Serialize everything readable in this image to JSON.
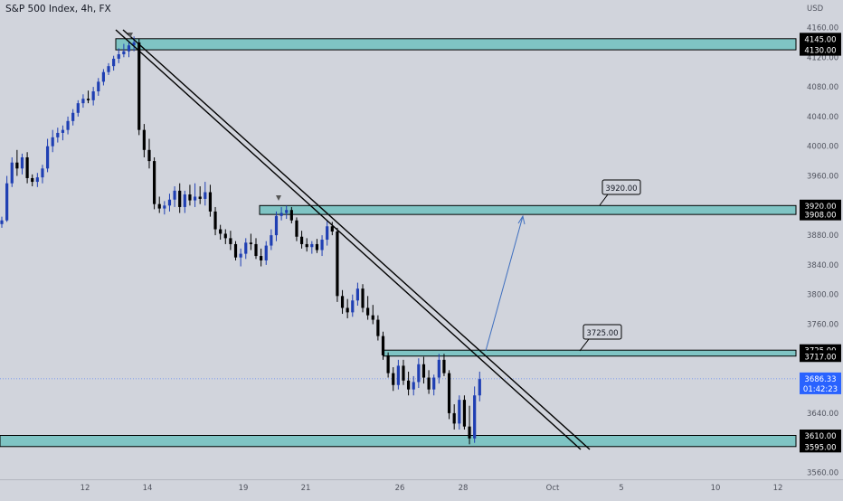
{
  "header": {
    "symbol_title": "S&P 500 Index, 4h, FX"
  },
  "chart_data": {
    "type": "candlestick",
    "currency_label": "USD",
    "ylim": [
      3545,
      4170
    ],
    "y_ticks": [
      4160,
      4120,
      4080,
      4040,
      4000,
      3960,
      3880,
      3840,
      3800,
      3760,
      3680,
      3640,
      3560
    ],
    "x_ticks": [
      "12",
      "14",
      "19",
      "21",
      "26",
      "28",
      "Oct",
      "5",
      "10",
      "12"
    ],
    "zones": [
      {
        "upper": 4145.0,
        "lower": 4130.0,
        "upper_label": "4145.00",
        "lower_label": "4130.00"
      },
      {
        "upper": 3920.0,
        "lower": 3908.0,
        "upper_label": "3920.00",
        "lower_label": "3908.00"
      },
      {
        "upper": 3725.0,
        "lower": 3717.0,
        "upper_label": "3725.00",
        "lower_label": "3717.00"
      },
      {
        "upper": 3610.0,
        "lower": 3595.0,
        "upper_label": "3610.00",
        "lower_label": "3595.00"
      }
    ],
    "annotations": [
      {
        "text": "3920.00",
        "value": 3920.0
      },
      {
        "text": "3725.00",
        "value": 3725.0
      }
    ],
    "current_price": {
      "price": "3686.33",
      "countdown": "01:42:23",
      "value": 3686.33
    },
    "colors": {
      "background": "#d1d4dc",
      "zone_fill": "#7fc4c4",
      "bull_candle": "#1f3fb3",
      "bear_candle": "#000000",
      "projection_arrow": "#3f6fbf",
      "price_label": "#2962ff"
    },
    "candles": [
      [
        3895,
        3905,
        3890,
        3900
      ],
      [
        3900,
        3960,
        3898,
        3950
      ],
      [
        3950,
        3985,
        3945,
        3978
      ],
      [
        3978,
        3995,
        3960,
        3970
      ],
      [
        3970,
        3990,
        3962,
        3985
      ],
      [
        3985,
        3992,
        3950,
        3957
      ],
      [
        3957,
        3962,
        3946,
        3952
      ],
      [
        3952,
        3964,
        3945,
        3958
      ],
      [
        3958,
        3975,
        3950,
        3970
      ],
      [
        3970,
        4010,
        3965,
        4000
      ],
      [
        4000,
        4022,
        3992,
        4012
      ],
      [
        4012,
        4025,
        4005,
        4018
      ],
      [
        4018,
        4028,
        4008,
        4022
      ],
      [
        4022,
        4040,
        4016,
        4034
      ],
      [
        4034,
        4050,
        4028,
        4045
      ],
      [
        4045,
        4062,
        4040,
        4058
      ],
      [
        4058,
        4070,
        4052,
        4064
      ],
      [
        4064,
        4075,
        4058,
        4062
      ],
      [
        4062,
        4080,
        4055,
        4074
      ],
      [
        4074,
        4092,
        4068,
        4087
      ],
      [
        4087,
        4104,
        4082,
        4100
      ],
      [
        4100,
        4112,
        4096,
        4108
      ],
      [
        4108,
        4122,
        4102,
        4118
      ],
      [
        4118,
        4132,
        4112,
        4124
      ],
      [
        4124,
        4138,
        4120,
        4128
      ],
      [
        4128,
        4140,
        4120,
        4136
      ],
      [
        4136,
        4148,
        4128,
        4140
      ],
      [
        4140,
        4145,
        4015,
        4022
      ],
      [
        4022,
        4030,
        3985,
        3995
      ],
      [
        3995,
        4010,
        3970,
        3980
      ],
      [
        3980,
        3985,
        3915,
        3922
      ],
      [
        3922,
        3932,
        3910,
        3916
      ],
      [
        3916,
        3926,
        3908,
        3920
      ],
      [
        3920,
        3936,
        3912,
        3928
      ],
      [
        3928,
        3946,
        3918,
        3940
      ],
      [
        3940,
        3950,
        3910,
        3918
      ],
      [
        3918,
        3940,
        3910,
        3935
      ],
      [
        3935,
        3948,
        3920,
        3927
      ],
      [
        3927,
        3950,
        3918,
        3932
      ],
      [
        3932,
        3946,
        3922,
        3929
      ],
      [
        3929,
        3952,
        3920,
        3938
      ],
      [
        3938,
        3948,
        3905,
        3912
      ],
      [
        3912,
        3918,
        3880,
        3888
      ],
      [
        3888,
        3894,
        3874,
        3882
      ],
      [
        3882,
        3888,
        3868,
        3876
      ],
      [
        3876,
        3886,
        3860,
        3868
      ],
      [
        3868,
        3872,
        3846,
        3850
      ],
      [
        3850,
        3862,
        3838,
        3855
      ],
      [
        3855,
        3876,
        3848,
        3870
      ],
      [
        3870,
        3882,
        3860,
        3868
      ],
      [
        3868,
        3876,
        3848,
        3852
      ],
      [
        3852,
        3862,
        3838,
        3846
      ],
      [
        3846,
        3872,
        3840,
        3866
      ],
      [
        3866,
        3888,
        3860,
        3880
      ],
      [
        3880,
        3912,
        3872,
        3906
      ],
      [
        3906,
        3918,
        3900,
        3910
      ],
      [
        3910,
        3920,
        3902,
        3914
      ],
      [
        3914,
        3918,
        3896,
        3900
      ],
      [
        3900,
        3904,
        3872,
        3878
      ],
      [
        3878,
        3886,
        3862,
        3868
      ],
      [
        3868,
        3876,
        3858,
        3864
      ],
      [
        3864,
        3872,
        3855,
        3868
      ],
      [
        3868,
        3875,
        3856,
        3860
      ],
      [
        3860,
        3880,
        3852,
        3874
      ],
      [
        3874,
        3900,
        3866,
        3892
      ],
      [
        3892,
        3898,
        3880,
        3885
      ],
      [
        3885,
        3890,
        3790,
        3798
      ],
      [
        3798,
        3806,
        3774,
        3782
      ],
      [
        3782,
        3794,
        3768,
        3776
      ],
      [
        3776,
        3800,
        3770,
        3792
      ],
      [
        3792,
        3816,
        3785,
        3808
      ],
      [
        3808,
        3814,
        3776,
        3782
      ],
      [
        3782,
        3798,
        3766,
        3772
      ],
      [
        3772,
        3786,
        3760,
        3766
      ],
      [
        3766,
        3772,
        3738,
        3744
      ],
      [
        3744,
        3750,
        3712,
        3718
      ],
      [
        3718,
        3722,
        3688,
        3694
      ],
      [
        3694,
        3702,
        3670,
        3678
      ],
      [
        3678,
        3712,
        3672,
        3704
      ],
      [
        3704,
        3712,
        3678,
        3684
      ],
      [
        3684,
        3696,
        3664,
        3672
      ],
      [
        3672,
        3690,
        3664,
        3682
      ],
      [
        3682,
        3714,
        3674,
        3706
      ],
      [
        3706,
        3716,
        3680,
        3688
      ],
      [
        3688,
        3698,
        3666,
        3672
      ],
      [
        3672,
        3692,
        3664,
        3688
      ],
      [
        3688,
        3720,
        3680,
        3712
      ],
      [
        3712,
        3720,
        3690,
        3694
      ],
      [
        3694,
        3698,
        3632,
        3640
      ],
      [
        3640,
        3652,
        3618,
        3626
      ],
      [
        3626,
        3664,
        3618,
        3658
      ],
      [
        3658,
        3664,
        3618,
        3622
      ],
      [
        3622,
        3650,
        3598,
        3606
      ],
      [
        3606,
        3676,
        3600,
        3664
      ],
      [
        3664,
        3696,
        3656,
        3686
      ]
    ]
  }
}
